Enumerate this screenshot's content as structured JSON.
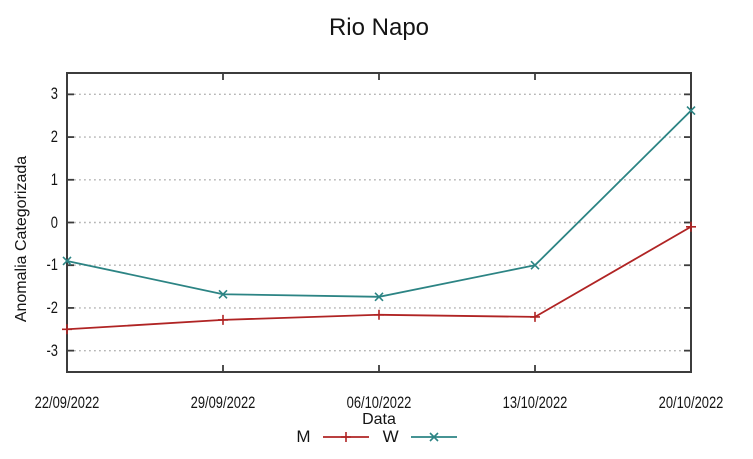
{
  "chart_data": {
    "type": "line",
    "title": "Rio Napo",
    "xlabel": "Data",
    "ylabel": "Anomalia Categorizada",
    "categories": [
      "22/09/2022",
      "29/09/2022",
      "06/10/2022",
      "13/10/2022",
      "20/10/2022"
    ],
    "series": [
      {
        "name": "M",
        "marker": "plus",
        "color": "#b02424",
        "values": [
          -2.5,
          -2.28,
          -2.16,
          -2.21,
          -0.1
        ]
      },
      {
        "name": "W",
        "marker": "cross",
        "color": "#2c8484",
        "values": [
          -0.9,
          -1.68,
          -1.74,
          -1.0,
          2.62
        ]
      }
    ],
    "ylim": [
      -3.5,
      3.5
    ],
    "yticks": [
      -3,
      -2,
      -1,
      0,
      1,
      2,
      3
    ],
    "grid": "horizontal-dotted",
    "legend_position": "bottom-center"
  },
  "colors": {
    "axis": "#3c3c3c",
    "grid": "#b5b5b5",
    "background": "#ffffff"
  }
}
